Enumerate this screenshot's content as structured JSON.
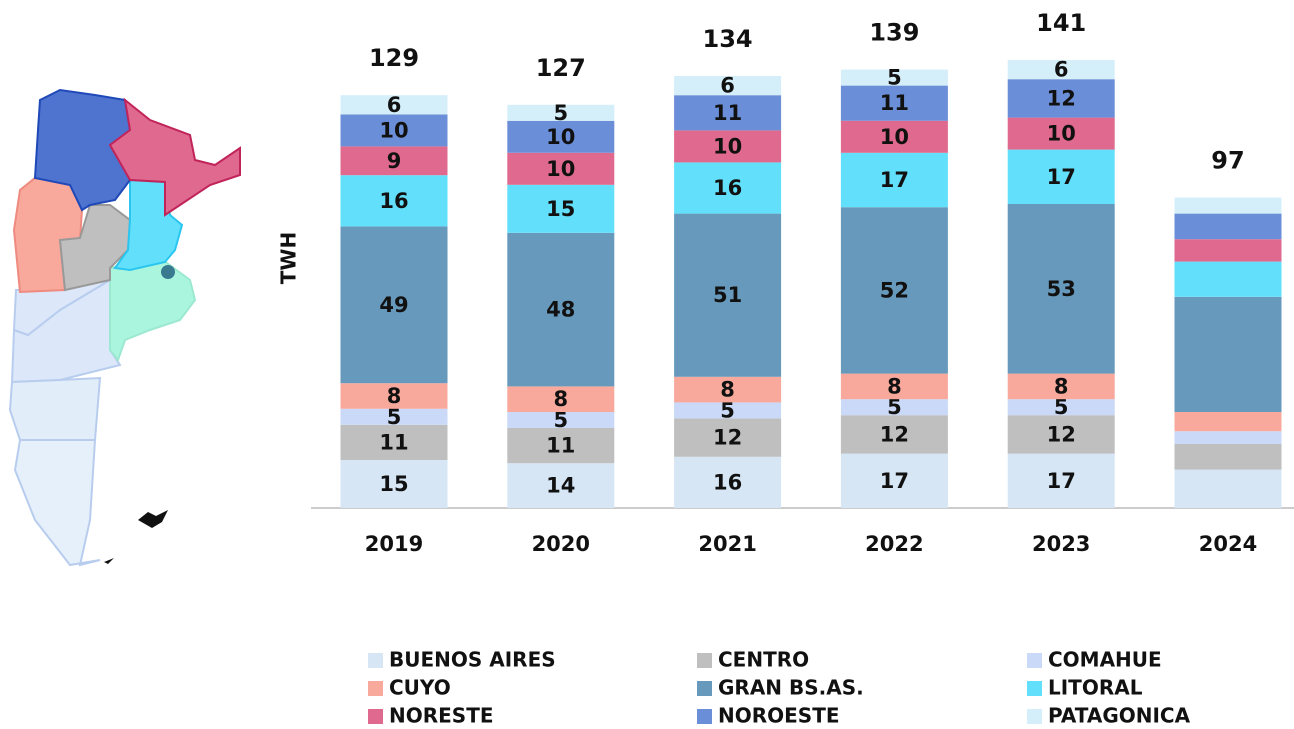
{
  "chart_data": {
    "type": "stacked_bar",
    "y_axis_label": "TWH",
    "categories": [
      "2019",
      "2020",
      "2021",
      "2022",
      "2023",
      "2024"
    ],
    "totals": [
      129,
      127,
      134,
      139,
      141,
      97
    ],
    "ylim": [
      0,
      150
    ],
    "series": [
      {
        "name": "BUENOS AIRES",
        "color": "#d6e6f5",
        "values": [
          15,
          14,
          16,
          17,
          17,
          12
        ],
        "value_labels": [
          "15",
          "14",
          "16",
          "17",
          "17",
          null
        ]
      },
      {
        "name": "CENTRO",
        "color": "#bfbfbf",
        "values": [
          11,
          11,
          12,
          12,
          12,
          8
        ],
        "value_labels": [
          "11",
          "11",
          "12",
          "12",
          "12",
          null
        ]
      },
      {
        "name": "COMAHUE",
        "color": "#c9d9f7",
        "values": [
          5,
          5,
          5,
          5,
          5,
          4
        ],
        "value_labels": [
          "5",
          "5",
          "5",
          "5",
          "5",
          null
        ]
      },
      {
        "name": "CUYO",
        "color": "#f8a99c",
        "values": [
          8,
          8,
          8,
          8,
          8,
          6
        ],
        "value_labels": [
          "8",
          "8",
          "8",
          "8",
          "8",
          null
        ]
      },
      {
        "name": "GRAN BS.AS.",
        "color": "#6699bb",
        "values": [
          49,
          48,
          51,
          52,
          53,
          36
        ],
        "value_labels": [
          "49",
          "48",
          "51",
          "52",
          "53",
          null
        ]
      },
      {
        "name": "LITORAL",
        "color": "#62e0fb",
        "values": [
          16,
          15,
          16,
          17,
          17,
          11
        ],
        "value_labels": [
          "16",
          "15",
          "16",
          "17",
          "17",
          null
        ]
      },
      {
        "name": "NORESTE",
        "color": "#e0698f",
        "values": [
          9,
          10,
          10,
          10,
          10,
          7
        ],
        "value_labels": [
          "9",
          "10",
          "10",
          "10",
          "10",
          null
        ]
      },
      {
        "name": "NOROESTE",
        "color": "#6b8ed8",
        "values": [
          10,
          10,
          11,
          11,
          12,
          8
        ],
        "value_labels": [
          "10",
          "10",
          "11",
          "11",
          "12",
          null
        ]
      },
      {
        "name": "PATAGONICA",
        "color": "#d5effa",
        "values": [
          6,
          5,
          6,
          5,
          6,
          5
        ],
        "value_labels": [
          "6",
          "5",
          "6",
          "5",
          "6",
          null
        ]
      }
    ]
  }
}
